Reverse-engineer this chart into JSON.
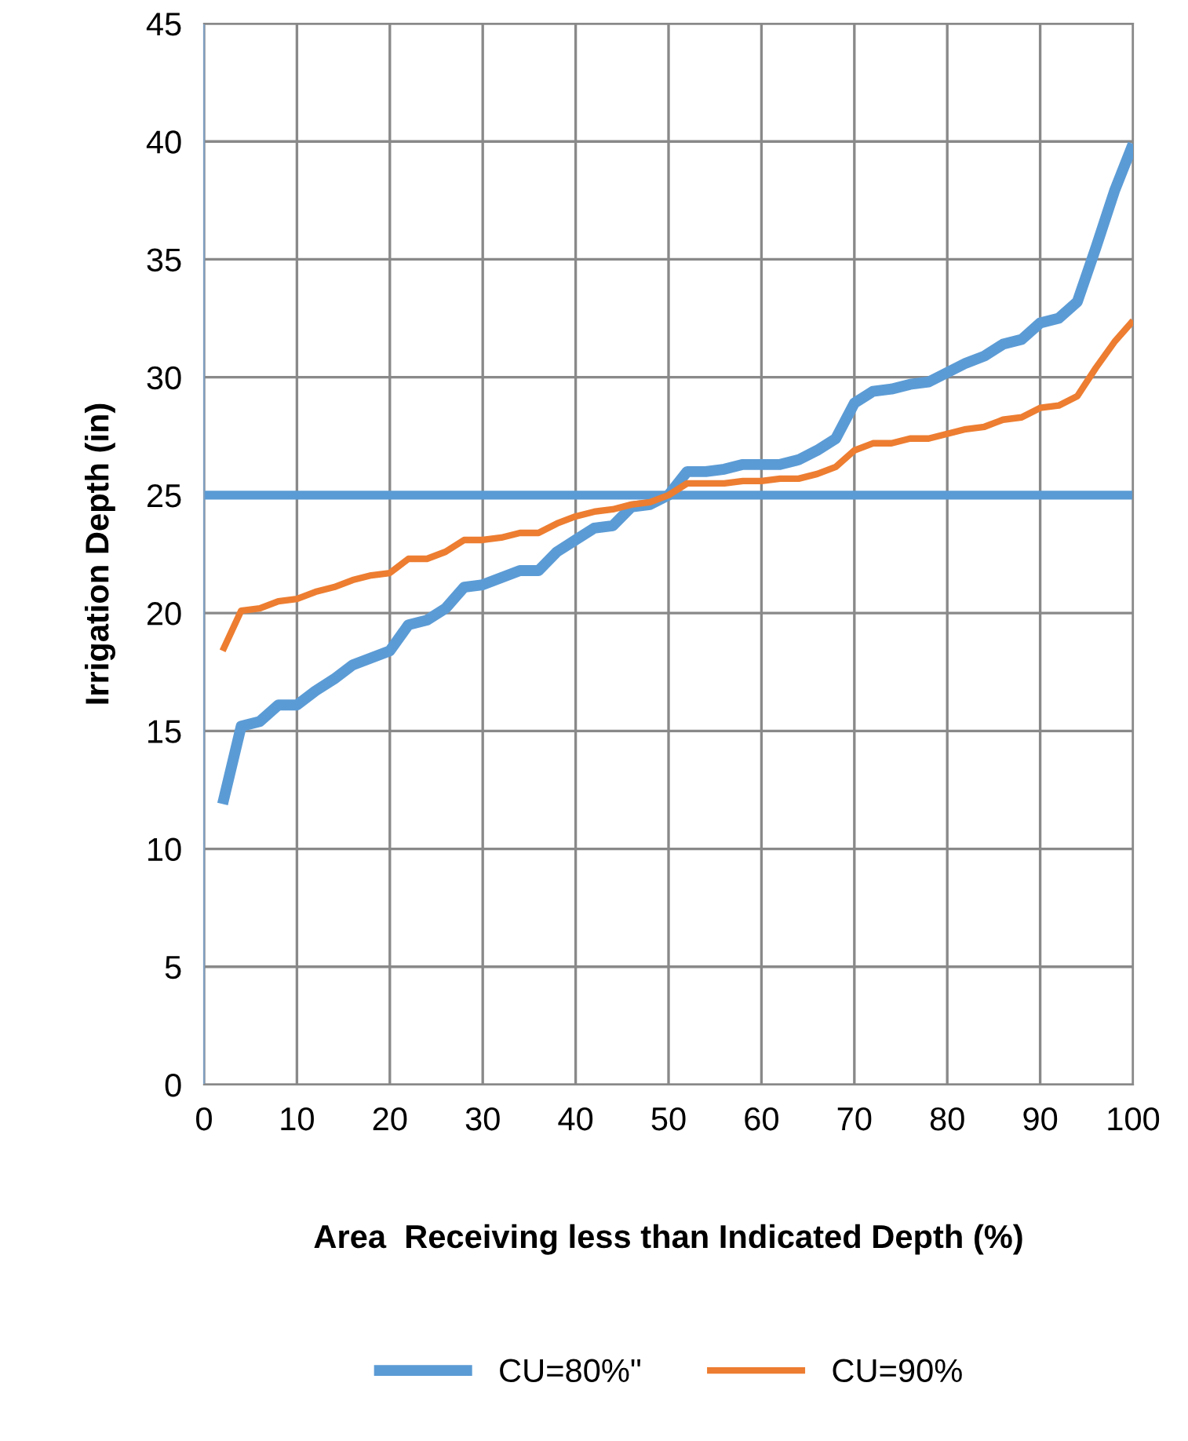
{
  "chart_data": {
    "type": "line",
    "xlabel": "Area  Receiving less than Indicated Depth (%)",
    "ylabel": "Irrigation Depth (in)",
    "x": [
      2,
      4,
      6,
      8,
      10,
      12,
      14,
      16,
      18,
      20,
      22,
      24,
      26,
      28,
      30,
      32,
      34,
      36,
      38,
      40,
      42,
      44,
      46,
      48,
      50,
      52,
      54,
      56,
      58,
      60,
      62,
      64,
      66,
      68,
      70,
      72,
      74,
      76,
      78,
      80,
      82,
      84,
      86,
      88,
      90,
      92,
      94,
      96,
      98,
      100
    ],
    "series": [
      {
        "name": "CU=80%\"",
        "color": "#5b9bd5",
        "values": [
          11.9,
          15.2,
          15.4,
          16.1,
          16.1,
          16.7,
          17.2,
          17.8,
          18.1,
          18.4,
          19.5,
          19.7,
          20.2,
          21.1,
          21.2,
          21.5,
          21.8,
          21.8,
          22.6,
          23.1,
          23.6,
          23.7,
          24.5,
          24.6,
          25.0,
          26.0,
          26.0,
          26.1,
          26.3,
          26.3,
          26.3,
          26.5,
          26.9,
          27.4,
          28.9,
          29.4,
          29.5,
          29.7,
          29.8,
          30.2,
          30.6,
          30.9,
          31.4,
          31.6,
          32.3,
          32.5,
          33.2,
          35.5,
          37.9,
          39.9
        ]
      },
      {
        "name": "CU=90%",
        "color": "#ed7d31",
        "values": [
          18.4,
          20.1,
          20.2,
          20.5,
          20.6,
          20.9,
          21.1,
          21.4,
          21.6,
          21.7,
          22.3,
          22.3,
          22.6,
          23.1,
          23.1,
          23.2,
          23.4,
          23.4,
          23.8,
          24.1,
          24.3,
          24.4,
          24.6,
          24.7,
          25.0,
          25.5,
          25.5,
          25.5,
          25.6,
          25.6,
          25.7,
          25.7,
          25.9,
          26.2,
          26.9,
          27.2,
          27.2,
          27.4,
          27.4,
          27.6,
          27.8,
          27.9,
          28.2,
          28.3,
          28.7,
          28.8,
          29.2,
          30.4,
          31.5,
          32.4
        ]
      }
    ],
    "ref_lines": [
      {
        "axis": "y",
        "value": 25,
        "color": "#5b9bd5"
      }
    ],
    "xlim": [
      0,
      100
    ],
    "xticks": [
      0,
      10,
      20,
      30,
      40,
      50,
      60,
      70,
      80,
      90,
      100
    ],
    "ylim": [
      0,
      45
    ],
    "yticks": [
      0,
      5,
      10,
      15,
      20,
      25,
      30,
      35,
      40,
      45
    ],
    "grid": true,
    "legend": "bottom",
    "marker": "none",
    "line_style": "solid"
  }
}
